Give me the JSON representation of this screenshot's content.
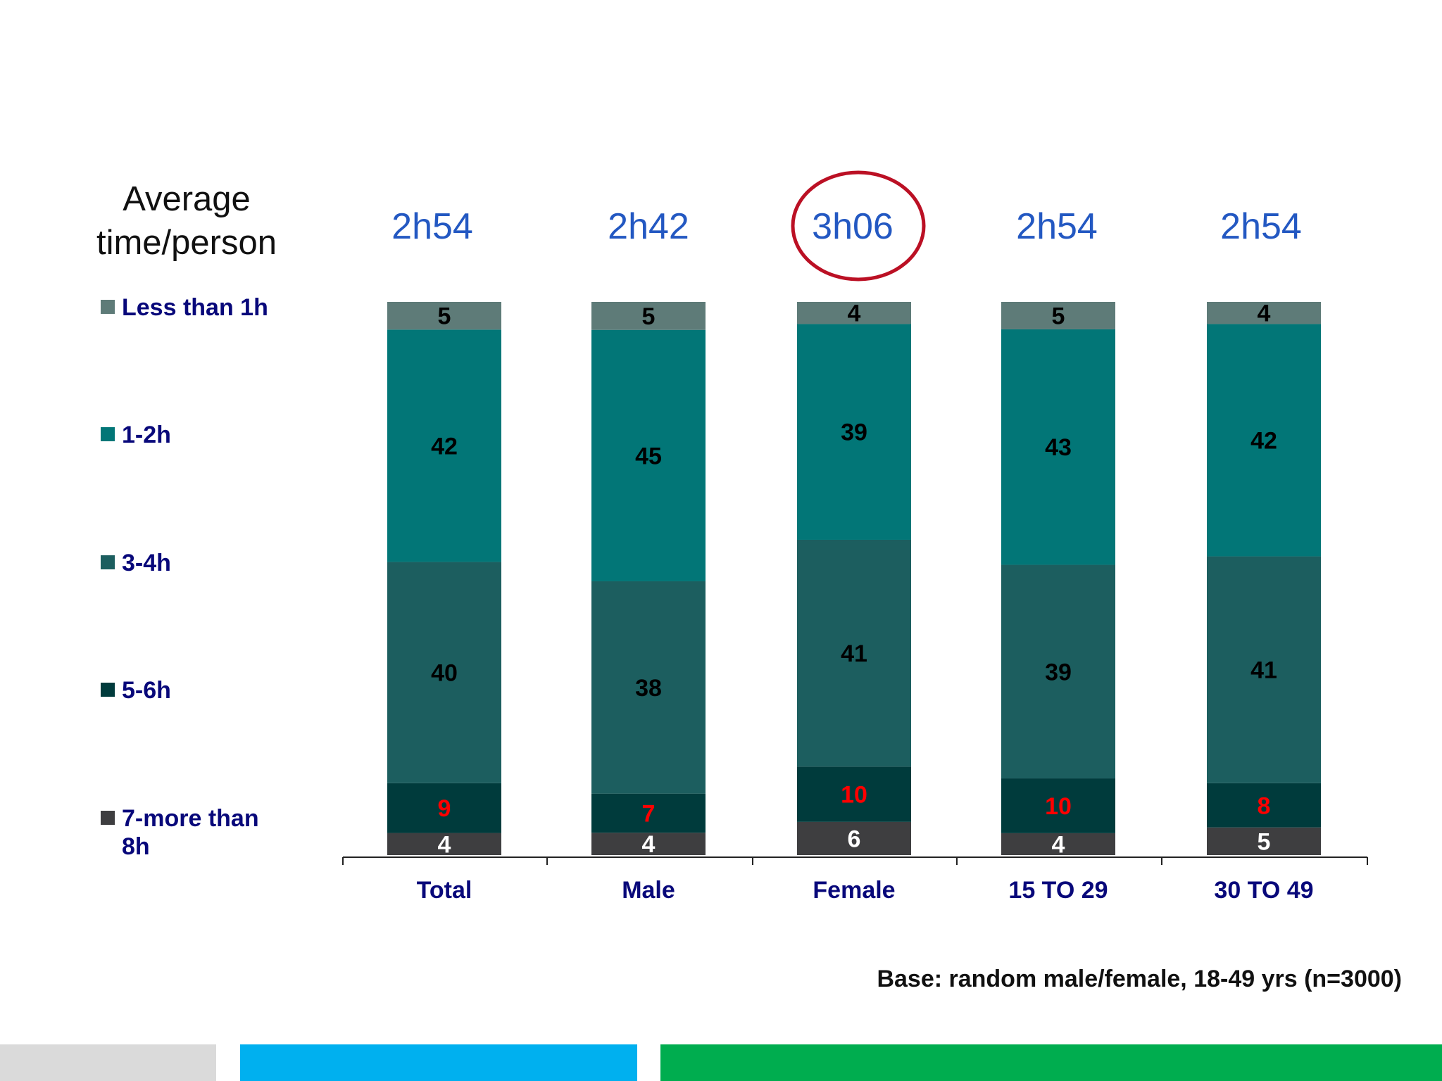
{
  "header": {
    "avg_title_line1": "Average",
    "avg_title_line2": "time/person"
  },
  "chart_data": {
    "type": "bar",
    "stacked": true,
    "categories": [
      "Total",
      "Male",
      "Female",
      "15 TO 29",
      "30 TO 49"
    ],
    "averages": [
      "2h54",
      "2h42",
      "3h06",
      "2h54",
      "2h54"
    ],
    "highlighted_category": "Female",
    "series": [
      {
        "name": "Less than 1h",
        "values": [
          5,
          5,
          4,
          5,
          4
        ],
        "color": "#5e7b78",
        "label_color": "#000000"
      },
      {
        "name": "1-2h",
        "values": [
          42,
          45,
          39,
          43,
          42
        ],
        "color": "#027677",
        "label_color": "#000000"
      },
      {
        "name": "3-4h",
        "values": [
          40,
          38,
          41,
          39,
          41
        ],
        "color": "#1c5e5f",
        "label_color": "#000000"
      },
      {
        "name": "5-6h",
        "values": [
          9,
          7,
          10,
          10,
          8
        ],
        "color": "#003b3c",
        "label_color": "#ff0000"
      },
      {
        "name": "7-more than 8h",
        "values": [
          4,
          4,
          6,
          4,
          5
        ],
        "color": "#3e3e40",
        "label_color": "#ffffff"
      }
    ],
    "ylim": [
      0,
      100
    ],
    "legend_position": "left",
    "grid": false
  },
  "colors": {
    "average_text": "#2358c2",
    "category_text": "#08087a",
    "legend_text": "#08087a",
    "highlight_circle": "#bb1024",
    "footer_gray": "#dadada",
    "footer_blue": "#00b0ef",
    "footer_green": "#00ad4f"
  },
  "footer": {
    "base_note": "Base: random male/female, 18-49 yrs (n=3000)"
  }
}
